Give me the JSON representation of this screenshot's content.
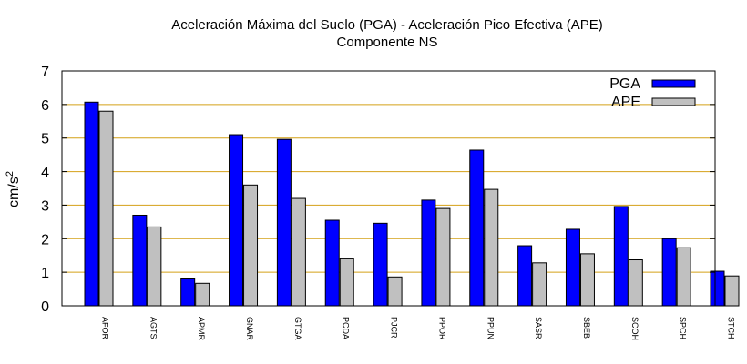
{
  "chart_data": {
    "type": "bar",
    "title": "Aceleración Máxima del Suelo (PGA) -  Aceleración Pico Efectiva (APE)",
    "subtitle": "Componente NS",
    "ylabel_base": "cm/s",
    "ylabel_exponent": "2",
    "xlabel": "",
    "ylim": [
      0,
      7
    ],
    "yticks": [
      0,
      1,
      2,
      3,
      4,
      5,
      6,
      7
    ],
    "grid": "horizontal",
    "legend_position": "top-right",
    "categories": [
      "AFOR",
      "AGTS",
      "APMR",
      "GNAR",
      "GTGA",
      "PCDA",
      "PJCR",
      "PPOR",
      "PPUN",
      "SASR",
      "SBEB",
      "SCOH",
      "SPCH",
      "STCH"
    ],
    "series": [
      {
        "name": "PGA",
        "color": "#0000ff",
        "values": [
          6.07,
          2.7,
          0.8,
          5.1,
          4.96,
          2.55,
          2.46,
          3.15,
          4.64,
          1.79,
          2.28,
          2.96,
          2.0,
          1.03
        ]
      },
      {
        "name": "APE",
        "color": "#c0c0c0",
        "values": [
          5.8,
          2.35,
          0.67,
          3.6,
          3.2,
          1.4,
          0.86,
          2.9,
          3.47,
          1.28,
          1.55,
          1.37,
          1.73,
          0.89
        ]
      }
    ],
    "colors": {
      "grid": "#d4a017",
      "axis": "#000000"
    }
  }
}
